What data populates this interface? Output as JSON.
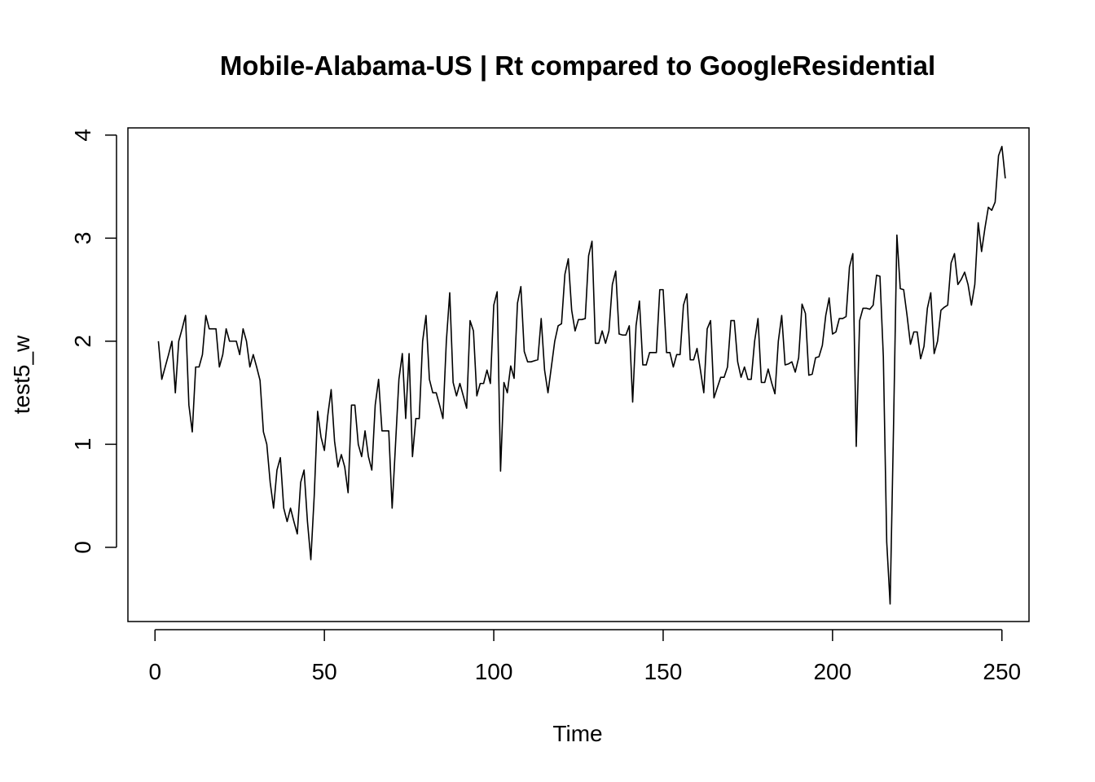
{
  "chart_data": {
    "type": "line",
    "title": "Mobile-Alabama-US | Rt compared to GoogleResidential",
    "xlabel": "Time",
    "ylabel": "test5_w",
    "xlim": [
      -8,
      258
    ],
    "ylim": [
      -0.72,
      4.07
    ],
    "x_ticks": [
      0,
      50,
      100,
      150,
      200,
      250
    ],
    "y_ticks": [
      0,
      1,
      2,
      3,
      4
    ],
    "grid": false,
    "legend": "none",
    "line_color": "#000000",
    "series": [
      {
        "x_start": 1,
        "values": [
          2.0,
          1.63,
          1.75,
          1.87,
          2.0,
          1.5,
          2.0,
          2.12,
          2.25,
          1.38,
          1.12,
          1.75,
          1.75,
          1.87,
          2.25,
          2.12,
          2.12,
          2.12,
          1.75,
          1.87,
          2.12,
          2.0,
          2.0,
          2.0,
          1.87,
          2.12,
          2.0,
          1.75,
          1.87,
          1.75,
          1.62,
          1.12,
          1.0,
          0.63,
          0.38,
          0.75,
          0.87,
          0.38,
          0.25,
          0.38,
          0.25,
          0.13,
          0.63,
          0.75,
          0.25,
          -0.12,
          0.5,
          1.32,
          1.07,
          0.94,
          1.28,
          1.53,
          1.03,
          0.78,
          0.9,
          0.78,
          0.53,
          1.38,
          1.38,
          1.0,
          0.88,
          1.13,
          0.88,
          0.75,
          1.38,
          1.63,
          1.13,
          1.13,
          1.13,
          0.38,
          1.0,
          1.63,
          1.88,
          1.25,
          1.88,
          0.88,
          1.25,
          1.25,
          2.0,
          2.25,
          1.63,
          1.5,
          1.5,
          1.38,
          1.25,
          2.0,
          2.47,
          1.6,
          1.47,
          1.59,
          1.47,
          1.35,
          2.2,
          2.1,
          1.47,
          1.59,
          1.59,
          1.72,
          1.59,
          2.35,
          2.48,
          0.74,
          1.6,
          1.5,
          1.76,
          1.64,
          2.37,
          2.53,
          1.9,
          1.8,
          1.8,
          1.81,
          1.82,
          2.22,
          1.72,
          1.5,
          1.75,
          2.0,
          2.15,
          2.17,
          2.65,
          2.8,
          2.3,
          2.1,
          2.21,
          2.21,
          2.22,
          2.83,
          2.97,
          1.98,
          1.98,
          2.1,
          1.98,
          2.1,
          2.55,
          2.68,
          2.07,
          2.06,
          2.06,
          2.15,
          1.41,
          2.15,
          2.39,
          1.77,
          1.77,
          1.89,
          1.89,
          1.89,
          2.5,
          2.5,
          1.89,
          1.89,
          1.75,
          1.87,
          1.87,
          2.35,
          2.46,
          1.82,
          1.82,
          1.93,
          1.72,
          1.5,
          2.12,
          2.2,
          1.45,
          1.55,
          1.65,
          1.65,
          1.75,
          2.2,
          2.2,
          1.8,
          1.65,
          1.75,
          1.63,
          1.63,
          2.0,
          2.22,
          1.6,
          1.6,
          1.73,
          1.6,
          1.49,
          2.0,
          2.25,
          1.77,
          1.78,
          1.8,
          1.7,
          1.84,
          2.36,
          2.27,
          1.67,
          1.68,
          1.84,
          1.85,
          1.96,
          2.25,
          2.42,
          2.07,
          2.09,
          2.22,
          2.22,
          2.24,
          2.72,
          2.85,
          0.98,
          2.2,
          2.32,
          2.32,
          2.31,
          2.35,
          2.64,
          2.63,
          1.85,
          0.05,
          -0.55,
          1.15,
          3.03,
          2.51,
          2.5,
          2.25,
          1.97,
          2.09,
          2.09,
          1.83,
          1.95,
          2.32,
          2.47,
          1.88,
          2.0,
          2.3,
          2.33,
          2.35,
          2.76,
          2.85,
          2.55,
          2.6,
          2.67,
          2.55,
          2.35,
          2.55,
          3.15,
          2.87,
          3.1,
          3.3,
          3.27,
          3.35,
          3.8,
          3.89,
          3.58
        ]
      }
    ]
  }
}
